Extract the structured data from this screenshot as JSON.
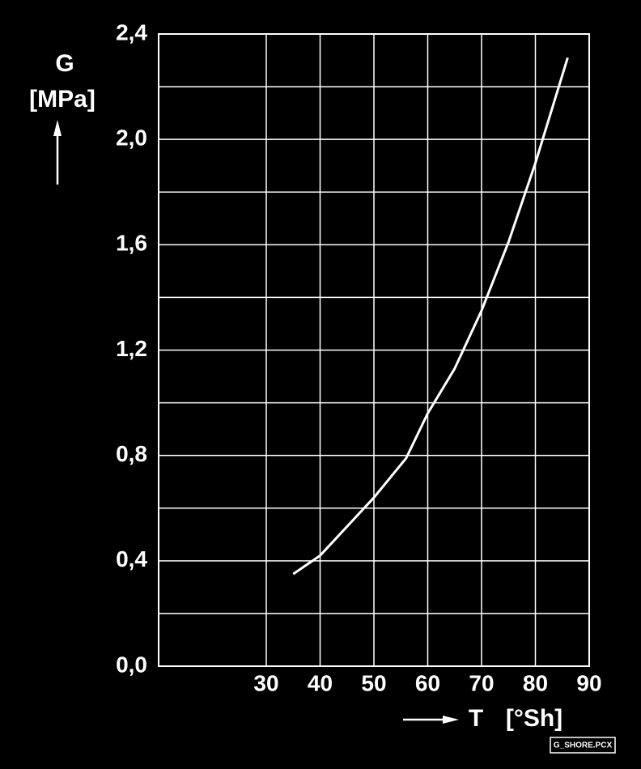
{
  "chart_data": {
    "type": "line",
    "y_label": "G",
    "y_unit": "[MPa]",
    "x_label": "T",
    "x_unit": "[°Sh]",
    "badge": "G_SHORE.PCX",
    "x": [
      35,
      40,
      50,
      56,
      60,
      65,
      70,
      75,
      80,
      86
    ],
    "series": [
      {
        "color": "#ffffff",
        "values": [
          0.35,
          0.42,
          0.64,
          0.79,
          0.96,
          1.13,
          1.35,
          1.61,
          1.91,
          2.31
        ]
      }
    ],
    "xlim": [
      10,
      90
    ],
    "xticks": [
      30,
      40,
      50,
      60,
      70,
      80,
      90
    ],
    "ylim": [
      0,
      2.4
    ],
    "yticks": [
      {
        "value": 0,
        "label": "0,0"
      },
      {
        "value": 0.4,
        "label": "0,4"
      },
      {
        "value": 0.8,
        "label": "0,8"
      },
      {
        "value": 1.2,
        "label": "1,2"
      },
      {
        "value": 1.6,
        "label": "1,6"
      },
      {
        "value": 2.0,
        "label": "2,0"
      },
      {
        "value": 2.4,
        "label": "2,4"
      }
    ],
    "y_minor_grid": [
      0.2,
      0.6,
      1.0,
      1.4,
      1.8,
      2.2
    ],
    "grid": true
  }
}
